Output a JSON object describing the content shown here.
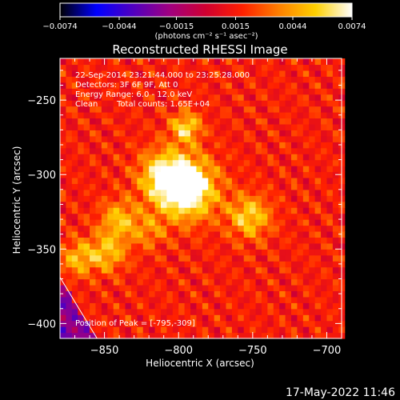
{
  "chart_data": {
    "type": "heatmap",
    "title": "Reconstructed RHESSI Image",
    "xlabel": "Heliocentric X (arcsec)",
    "ylabel": "Heliocentric Y (arcsec)",
    "xlim": [
      -880,
      -690
    ],
    "ylim": [
      -410,
      -222
    ],
    "x_ticks": [
      "−850",
      "−800",
      "−750",
      "−700"
    ],
    "x_tick_values": [
      -850,
      -800,
      -750,
      -700
    ],
    "y_ticks": [
      "−250",
      "−300",
      "−350",
      "−400"
    ],
    "y_tick_values": [
      -250,
      -300,
      -350,
      -400
    ],
    "colorbar": {
      "min": -0.0074,
      "max": 0.0074,
      "units": "(photons cm⁻² s⁻¹ asec⁻²)",
      "ticks": [
        "−0.0074",
        "−0.0044",
        "−0.0015",
        "0.0015",
        "0.0044",
        "0.0074"
      ],
      "tick_values": [
        -0.0074,
        -0.0044,
        -0.0015,
        0.0015,
        0.0044,
        0.0074
      ]
    },
    "annotations": [
      "22-Sep-2014 23:21:44.000 to 23:25:28.000",
      "Detectors: 3F 6F 9F, Att 0",
      "Energy Range: 6.0 - 12.0 keV",
      "Clean",
      "Total counts: 1.65E+04"
    ],
    "peak_label": "Position of Peak = [-795,-309]",
    "peak": [
      -795,
      -309
    ],
    "sources": [
      {
        "x": -795,
        "y": -309,
        "sigma": 14,
        "amp": 0.0074
      },
      {
        "x": -810,
        "y": -300,
        "sigma": 12,
        "amp": 0.004
      },
      {
        "x": -795,
        "y": -268,
        "sigma": 7,
        "amp": 0.0045
      },
      {
        "x": -752,
        "y": -328,
        "sigma": 10,
        "amp": 0.0042
      },
      {
        "x": -840,
        "y": -330,
        "sigma": 9,
        "amp": 0.0036
      },
      {
        "x": -848,
        "y": -352,
        "sigma": 9,
        "amp": 0.0036
      },
      {
        "x": -868,
        "y": -356,
        "sigma": 8,
        "amp": 0.0034
      },
      {
        "x": -820,
        "y": -338,
        "sigma": 8,
        "amp": 0.0022
      }
    ],
    "background_level": 0.0016,
    "background_ripple": 0.0012,
    "limb_line": [
      [
        -880,
        -369
      ],
      [
        -855,
        -410
      ]
    ],
    "grid": false,
    "colors": {
      "colormap": [
        "#000000",
        "#0000ff",
        "#5000c0",
        "#a00080",
        "#d00030",
        "#ff2000",
        "#ff8000",
        "#ffd000",
        "#ffffff"
      ],
      "axes": "#ffffff",
      "background": "#000000"
    }
  },
  "footer": {
    "timestamp": "17-May-2022 11:46"
  }
}
